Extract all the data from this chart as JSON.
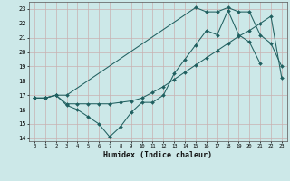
{
  "xlabel": "Humidex (Indice chaleur)",
  "xlim": [
    -0.5,
    23.5
  ],
  "ylim": [
    13.8,
    23.5
  ],
  "yticks": [
    14,
    15,
    16,
    17,
    18,
    19,
    20,
    21,
    22,
    23
  ],
  "xticks": [
    0,
    1,
    2,
    3,
    4,
    5,
    6,
    7,
    8,
    9,
    10,
    11,
    12,
    13,
    14,
    15,
    16,
    17,
    18,
    19,
    20,
    21,
    22,
    23
  ],
  "bg_color": "#cce8e8",
  "grid_color": "#c8b0b0",
  "line_color": "#206060",
  "line1_x": [
    0,
    1,
    2,
    3,
    4,
    5,
    6,
    7,
    8,
    9,
    10,
    11,
    12,
    13,
    14,
    15,
    16,
    17,
    18,
    19,
    20,
    21
  ],
  "line1_y": [
    16.8,
    16.8,
    17.0,
    16.3,
    16.0,
    15.5,
    15.0,
    14.1,
    14.8,
    15.8,
    16.5,
    16.5,
    17.0,
    18.5,
    19.5,
    20.5,
    21.5,
    21.2,
    22.9,
    21.2,
    20.7,
    19.2
  ],
  "line2_x": [
    0,
    1,
    2,
    3,
    4,
    5,
    6,
    7,
    8,
    9,
    10,
    11,
    12,
    13,
    14,
    15,
    16,
    17,
    18,
    19,
    20,
    21,
    22,
    23
  ],
  "line2_y": [
    16.8,
    16.8,
    17.0,
    16.4,
    16.4,
    16.4,
    16.4,
    16.4,
    16.5,
    16.6,
    16.8,
    17.2,
    17.6,
    18.1,
    18.6,
    19.1,
    19.6,
    20.1,
    20.6,
    21.1,
    21.5,
    22.0,
    22.5,
    18.2
  ],
  "line3_x": [
    0,
    1,
    2,
    3,
    15,
    16,
    17,
    18,
    19,
    20,
    21,
    22,
    23
  ],
  "line3_y": [
    16.8,
    16.8,
    17.0,
    17.0,
    23.1,
    22.8,
    22.8,
    23.1,
    22.8,
    22.8,
    21.2,
    20.6,
    19.0
  ]
}
